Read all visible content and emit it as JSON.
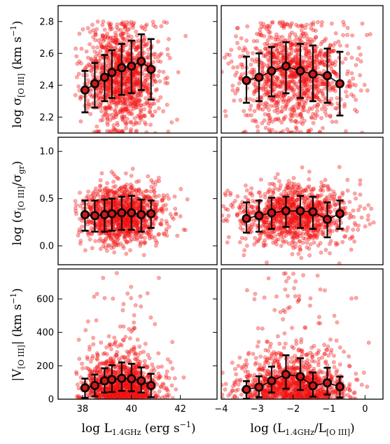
{
  "chart_data": [
    {
      "type": "scatter",
      "panel": "top-left",
      "title": "",
      "xlabel": "",
      "ylabel": "log σ[O III] (km s−1)",
      "xlim": [
        37,
        43.5
      ],
      "ylim": [
        2.1,
        2.9
      ],
      "xticks": [],
      "yticks": [
        2.2,
        2.4,
        2.6,
        2.8
      ],
      "ytick_labels": [
        "2.2",
        "2.4",
        "2.6",
        "2.8"
      ],
      "cloud": {
        "x_range": [
          37.7,
          42.3
        ],
        "x_center": 39.6,
        "x_spread": 0.75,
        "y_center": 2.46,
        "y_spread": 0.17,
        "y_min": 2.1,
        "y_max": 2.8,
        "n": 1100,
        "seed": 11
      },
      "binned": {
        "x": [
          38.1,
          38.5,
          38.9,
          39.2,
          39.6,
          40.0,
          40.4,
          40.8
        ],
        "y": [
          2.37,
          2.41,
          2.45,
          2.48,
          2.51,
          2.52,
          2.55,
          2.5
        ],
        "err_low": [
          0.14,
          0.15,
          0.15,
          0.16,
          0.17,
          0.17,
          0.18,
          0.19
        ],
        "err_high": [
          0.12,
          0.13,
          0.14,
          0.14,
          0.15,
          0.16,
          0.17,
          0.19
        ]
      }
    },
    {
      "type": "scatter",
      "panel": "top-right",
      "title": "",
      "xlabel": "",
      "ylabel": "",
      "xlim": [
        -4,
        0.5
      ],
      "ylim": [
        2.1,
        2.9
      ],
      "xticks": [],
      "yticks": [],
      "cloud": {
        "x_range": [
          -4,
          0.3
        ],
        "x_center": -2.0,
        "x_spread": 0.75,
        "y_center": 2.46,
        "y_spread": 0.17,
        "y_min": 2.1,
        "y_max": 2.8,
        "n": 1100,
        "seed": 23
      },
      "binned": {
        "x": [
          -3.3,
          -2.95,
          -2.6,
          -2.2,
          -1.8,
          -1.45,
          -1.05,
          -0.7
        ],
        "y": [
          2.43,
          2.45,
          2.49,
          2.52,
          2.49,
          2.47,
          2.46,
          2.41
        ],
        "err_low": [
          0.14,
          0.15,
          0.16,
          0.17,
          0.17,
          0.17,
          0.17,
          0.2
        ],
        "err_high": [
          0.15,
          0.15,
          0.15,
          0.15,
          0.17,
          0.18,
          0.17,
          0.2
        ]
      }
    },
    {
      "type": "scatter",
      "panel": "middle-left",
      "title": "",
      "xlabel": "",
      "ylabel": "log (σ[O III]/σgr)",
      "xlim": [
        37,
        43.5
      ],
      "ylim": [
        -0.2,
        1.15
      ],
      "xticks": [],
      "yticks": [
        0.0,
        0.5,
        1.0
      ],
      "ytick_labels": [
        "0.0",
        "0.5",
        "1.0"
      ],
      "cloud": {
        "x_range": [
          37.7,
          42.3
        ],
        "x_center": 39.6,
        "x_spread": 0.8,
        "y_center": 0.33,
        "y_spread": 0.16,
        "y_min": -0.2,
        "y_max": 1.05,
        "n": 1100,
        "seed": 37
      },
      "binned": {
        "x": [
          38.1,
          38.5,
          38.9,
          39.2,
          39.6,
          40.0,
          40.4,
          40.8
        ],
        "y": [
          0.33,
          0.32,
          0.33,
          0.34,
          0.35,
          0.35,
          0.33,
          0.34
        ],
        "err_low": [
          0.17,
          0.17,
          0.18,
          0.18,
          0.18,
          0.18,
          0.18,
          0.15
        ],
        "err_high": [
          0.15,
          0.16,
          0.16,
          0.16,
          0.17,
          0.18,
          0.16,
          0.14
        ]
      }
    },
    {
      "type": "scatter",
      "panel": "middle-right",
      "title": "",
      "xlabel": "",
      "ylabel": "",
      "xlim": [
        -4,
        0.5
      ],
      "ylim": [
        -0.2,
        1.15
      ],
      "xticks": [],
      "yticks": [],
      "cloud": {
        "x_range": [
          -4,
          0.3
        ],
        "x_center": -2.0,
        "x_spread": 0.8,
        "y_center": 0.33,
        "y_spread": 0.16,
        "y_min": -0.2,
        "y_max": 1.05,
        "n": 1100,
        "seed": 41
      },
      "binned": {
        "x": [
          -3.3,
          -2.95,
          -2.6,
          -2.2,
          -1.8,
          -1.45,
          -1.05,
          -0.7
        ],
        "y": [
          0.29,
          0.32,
          0.35,
          0.37,
          0.37,
          0.36,
          0.28,
          0.34
        ],
        "err_low": [
          0.15,
          0.17,
          0.17,
          0.17,
          0.18,
          0.18,
          0.19,
          0.16
        ],
        "err_high": [
          0.17,
          0.16,
          0.16,
          0.15,
          0.16,
          0.16,
          0.18,
          0.14
        ]
      }
    },
    {
      "type": "scatter",
      "panel": "bottom-left",
      "title": "",
      "xlabel": "log L1.4GHz (erg s−1)",
      "ylabel": "|V[O III]| (km s−1)",
      "xlim": [
        37,
        43.5
      ],
      "ylim": [
        0,
        780
      ],
      "xticks": [
        38,
        40,
        42
      ],
      "xtick_labels": [
        "38",
        "40",
        "42"
      ],
      "yticks": [
        0,
        200,
        400,
        600
      ],
      "ytick_labels": [
        "0",
        "200",
        "400",
        "600"
      ],
      "cloud": {
        "x_range": [
          37.7,
          42.3
        ],
        "x_center": 39.6,
        "x_spread": 0.75,
        "y_center": 100,
        "y_spread": 95,
        "y_min": 0,
        "y_max": 760,
        "n": 1100,
        "seed": 53
      },
      "binned": {
        "x": [
          38.1,
          38.5,
          38.9,
          39.2,
          39.6,
          40.0,
          40.4,
          40.8
        ],
        "y": [
          68,
          82,
          110,
          118,
          125,
          122,
          110,
          82
        ],
        "err_low": [
          60,
          65,
          70,
          75,
          75,
          75,
          70,
          70
        ],
        "err_high": [
          55,
          65,
          75,
          85,
          95,
          90,
          80,
          70
        ]
      }
    },
    {
      "type": "scatter",
      "panel": "bottom-right",
      "title": "",
      "xlabel": "log (L1.4GHz/L[O III])",
      "ylabel": "",
      "xlim": [
        -4,
        0.5
      ],
      "ylim": [
        0,
        780
      ],
      "xticks": [
        -4,
        -3,
        -2,
        -1,
        0
      ],
      "xtick_labels": [
        "−4",
        "−3",
        "−2",
        "−1",
        "0"
      ],
      "yticks": [],
      "cloud": {
        "x_range": [
          -4,
          0.3
        ],
        "x_center": -2.0,
        "x_spread": 0.75,
        "y_center": 100,
        "y_spread": 95,
        "y_min": 0,
        "y_max": 760,
        "n": 1100,
        "seed": 67
      },
      "binned": {
        "x": [
          -3.3,
          -2.95,
          -2.6,
          -2.2,
          -1.8,
          -1.45,
          -1.05,
          -0.7
        ],
        "y": [
          58,
          72,
          110,
          148,
          135,
          80,
          98,
          75
        ],
        "err_low": [
          55,
          60,
          70,
          85,
          80,
          65,
          70,
          65
        ],
        "err_high": [
          50,
          65,
          85,
          115,
          110,
          80,
          90,
          60
        ]
      }
    }
  ],
  "labels": {
    "ylabel_top": "log σ[O III] (km s−1)",
    "ylabel_middle": "log (σ[O III]/σgr)",
    "ylabel_bottom": "|V[O III]| (km s−1)",
    "xlabel_left": "log L1.4GHz (erg s−1)",
    "xlabel_right": "log (L1.4GHz/L[O III])"
  },
  "colors": {
    "scatter_fill": "#ff1a1a",
    "binned_fill": "#cc1a1a",
    "binned_edge": "#000000"
  }
}
